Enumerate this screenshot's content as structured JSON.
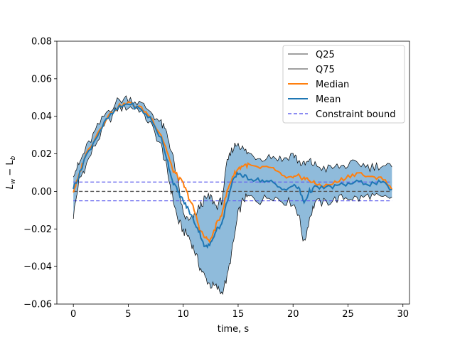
{
  "chart_data": {
    "type": "line",
    "xlabel": "time, s",
    "ylabel": "L_w − L_b",
    "ylabel_main": "L",
    "ylabel_sub1": "w",
    "ylabel_mid": " − L",
    "ylabel_sub2": "b",
    "xlim": [
      -1.5,
      30.6
    ],
    "ylim": [
      -0.06,
      0.08
    ],
    "x_ticks": [
      0,
      5,
      10,
      15,
      20,
      25,
      30
    ],
    "x_tick_labels": [
      "0",
      "5",
      "10",
      "15",
      "20",
      "25",
      "30"
    ],
    "y_ticks": [
      -0.06,
      -0.04,
      -0.02,
      0.0,
      0.02,
      0.04,
      0.06,
      0.08
    ],
    "y_tick_labels": [
      "−0.06",
      "−0.04",
      "−0.02",
      "0.00",
      "0.02",
      "0.04",
      "0.06",
      "0.08"
    ],
    "grid": false,
    "legend_position": "top-right",
    "colors": {
      "q25": "#000000",
      "q75": "#000000",
      "median": "#ff7f0e",
      "mean": "#1f77b4",
      "band": "#8fbbdb",
      "constraint": "#6666ee",
      "zero": "#555555"
    },
    "constraint_bound": 0.005,
    "series": [
      {
        "name": "Q25",
        "x": [
          0,
          0.5,
          1,
          2,
          3,
          4,
          5,
          6,
          7,
          8,
          8.5,
          9,
          9.5,
          10,
          10.5,
          11,
          11.5,
          12,
          12.5,
          13,
          13.5,
          14,
          14.5,
          15,
          15.5,
          16,
          17,
          18,
          19,
          20,
          20.5,
          21,
          21.5,
          22,
          23,
          24,
          25,
          26,
          27,
          28,
          29
        ],
        "values": [
          -0.013,
          0.005,
          0.012,
          0.025,
          0.036,
          0.044,
          0.045,
          0.044,
          0.036,
          0.024,
          0.012,
          -0.002,
          -0.015,
          -0.021,
          -0.024,
          -0.031,
          -0.04,
          -0.046,
          -0.05,
          -0.051,
          -0.054,
          -0.046,
          -0.03,
          -0.012,
          -0.004,
          -0.003,
          -0.005,
          -0.002,
          -0.005,
          -0.006,
          -0.012,
          -0.028,
          -0.014,
          -0.006,
          -0.006,
          -0.004,
          -0.003,
          -0.004,
          -0.002,
          -0.004,
          -0.003
        ]
      },
      {
        "name": "Q75",
        "x": [
          0,
          0.5,
          1,
          2,
          3,
          4,
          5,
          6,
          7,
          8,
          8.5,
          9,
          9.5,
          10,
          10.5,
          11,
          11.5,
          12,
          12.5,
          13,
          13.5,
          14,
          14.5,
          15,
          15.5,
          16,
          17,
          18,
          19,
          20,
          20.5,
          21,
          21.5,
          22,
          23,
          24,
          25,
          26,
          27,
          28,
          29
        ],
        "values": [
          0.01,
          0.014,
          0.021,
          0.032,
          0.042,
          0.048,
          0.05,
          0.047,
          0.043,
          0.036,
          0.031,
          0.02,
          0.005,
          -0.012,
          -0.016,
          -0.014,
          -0.008,
          -0.004,
          -0.003,
          -0.008,
          -0.005,
          0.015,
          0.023,
          0.026,
          0.022,
          0.02,
          0.018,
          0.019,
          0.017,
          0.02,
          0.016,
          0.014,
          0.016,
          0.014,
          0.012,
          0.013,
          0.014,
          0.015,
          0.013,
          0.014,
          0.013
        ]
      },
      {
        "name": "Median",
        "x": [
          0,
          0.5,
          1,
          2,
          3,
          4,
          5,
          6,
          7,
          8,
          8.5,
          9,
          9.5,
          10,
          10.5,
          11,
          11.5,
          12,
          12.5,
          13,
          13.5,
          14,
          14.5,
          15,
          15.5,
          16,
          17,
          18,
          19,
          20,
          20.5,
          21,
          21.5,
          22,
          23,
          24,
          25,
          26,
          27,
          28,
          29
        ],
        "values": [
          0.0,
          0.008,
          0.018,
          0.029,
          0.039,
          0.045,
          0.047,
          0.045,
          0.04,
          0.03,
          0.022,
          0.012,
          0.008,
          0.004,
          -0.003,
          -0.01,
          -0.02,
          -0.025,
          -0.026,
          -0.018,
          -0.012,
          0.0,
          0.008,
          0.012,
          0.014,
          0.014,
          0.012,
          0.013,
          0.008,
          0.007,
          0.008,
          0.007,
          0.006,
          0.004,
          0.003,
          0.005,
          0.008,
          0.01,
          0.007,
          0.008,
          0.001
        ]
      },
      {
        "name": "Mean",
        "x": [
          0,
          0.5,
          1,
          2,
          3,
          4,
          5,
          6,
          7,
          8,
          8.5,
          9,
          9.5,
          10,
          10.5,
          11,
          11.5,
          12,
          12.5,
          13,
          13.5,
          14,
          14.5,
          15,
          15.5,
          16,
          17,
          18,
          19,
          20,
          20.5,
          21,
          21.5,
          22,
          23,
          24,
          25,
          26,
          27,
          28,
          29
        ],
        "values": [
          0.002,
          0.008,
          0.017,
          0.028,
          0.038,
          0.044,
          0.047,
          0.044,
          0.039,
          0.028,
          0.018,
          0.006,
          0.0,
          -0.005,
          -0.01,
          -0.016,
          -0.022,
          -0.03,
          -0.028,
          -0.02,
          -0.018,
          -0.005,
          0.005,
          0.01,
          0.008,
          0.007,
          0.006,
          0.005,
          0.001,
          0.003,
          0.002,
          -0.006,
          0.0,
          0.002,
          0.002,
          0.003,
          0.004,
          0.005,
          0.004,
          0.005,
          0.001
        ]
      },
      {
        "name": "Constraint bound",
        "style": "dashed",
        "x": [
          0,
          29
        ],
        "upper": 0.005,
        "lower": -0.005
      }
    ],
    "legend": [
      "Q25",
      "Q75",
      "Median",
      "Mean",
      "Constraint bound"
    ]
  }
}
